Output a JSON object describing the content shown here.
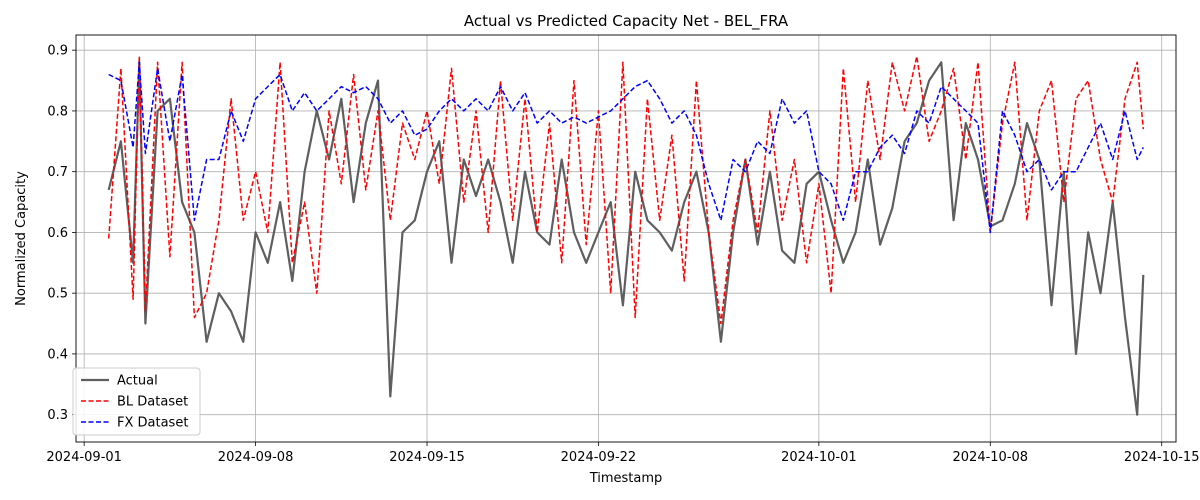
{
  "chart_data": {
    "type": "line",
    "title": "Actual vs Predicted Capacity Net - BEL_FRA",
    "xlabel": "Timestamp",
    "ylabel": "Normalized Capacity",
    "x_range": [
      "2024-08-31T16:00",
      "2024-10-15T14:00"
    ],
    "ylim": [
      0.255,
      0.925
    ],
    "x_ticks": [
      "2024-09-01",
      "2024-09-08",
      "2024-09-15",
      "2024-09-22",
      "2024-10-01",
      "2024-10-08",
      "2024-10-15"
    ],
    "y_ticks": [
      0.3,
      0.4,
      0.5,
      0.6,
      0.7,
      0.8,
      0.9
    ],
    "grid": true,
    "legend_position": "lower-left",
    "series": [
      {
        "name": "Actual",
        "color": "#5f5f5f",
        "style": "solid",
        "x": [
          "2024-09-02T00:00",
          "2024-09-02T12:00",
          "2024-09-03T00:00",
          "2024-09-03T06:00",
          "2024-09-03T12:00",
          "2024-09-04T00:00",
          "2024-09-04T12:00",
          "2024-09-05T00:00",
          "2024-09-05T12:00",
          "2024-09-06T00:00",
          "2024-09-06T12:00",
          "2024-09-07T00:00",
          "2024-09-07T12:00",
          "2024-09-08T00:00",
          "2024-09-08T12:00",
          "2024-09-09T00:00",
          "2024-09-09T12:00",
          "2024-09-10T00:00",
          "2024-09-10T12:00",
          "2024-09-11T00:00",
          "2024-09-11T12:00",
          "2024-09-12T00:00",
          "2024-09-12T12:00",
          "2024-09-13T00:00",
          "2024-09-13T12:00",
          "2024-09-14T00:00",
          "2024-09-14T12:00",
          "2024-09-15T00:00",
          "2024-09-15T12:00",
          "2024-09-16T00:00",
          "2024-09-16T12:00",
          "2024-09-17T00:00",
          "2024-09-17T12:00",
          "2024-09-18T00:00",
          "2024-09-18T12:00",
          "2024-09-19T00:00",
          "2024-09-19T12:00",
          "2024-09-20T00:00",
          "2024-09-20T12:00",
          "2024-09-21T00:00",
          "2024-09-21T12:00",
          "2024-09-22T00:00",
          "2024-09-22T12:00",
          "2024-09-23T00:00",
          "2024-09-23T12:00",
          "2024-09-24T00:00",
          "2024-09-24T12:00",
          "2024-09-25T00:00",
          "2024-09-25T12:00",
          "2024-09-26T00:00",
          "2024-09-26T12:00",
          "2024-09-27T00:00",
          "2024-09-27T12:00",
          "2024-09-28T00:00",
          "2024-09-28T12:00",
          "2024-09-29T00:00",
          "2024-09-29T12:00",
          "2024-09-30T00:00",
          "2024-09-30T12:00",
          "2024-10-01T00:00",
          "2024-10-01T12:00",
          "2024-10-02T00:00",
          "2024-10-02T12:00",
          "2024-10-03T00:00",
          "2024-10-03T12:00",
          "2024-10-04T00:00",
          "2024-10-04T12:00",
          "2024-10-05T00:00",
          "2024-10-05T12:00",
          "2024-10-06T00:00",
          "2024-10-06T12:00",
          "2024-10-07T00:00",
          "2024-10-07T12:00",
          "2024-10-08T00:00",
          "2024-10-08T12:00",
          "2024-10-09T00:00",
          "2024-10-09T12:00",
          "2024-10-10T00:00",
          "2024-10-10T12:00",
          "2024-10-11T00:00",
          "2024-10-11T12:00",
          "2024-10-12T00:00",
          "2024-10-12T12:00",
          "2024-10-13T00:00",
          "2024-10-13T12:00",
          "2024-10-14T00:00",
          "2024-10-14T06:00"
        ],
        "y": [
          0.67,
          0.75,
          0.55,
          0.88,
          0.45,
          0.8,
          0.82,
          0.65,
          0.6,
          0.42,
          0.5,
          0.47,
          0.42,
          0.6,
          0.55,
          0.65,
          0.52,
          0.7,
          0.8,
          0.72,
          0.82,
          0.65,
          0.78,
          0.85,
          0.33,
          0.6,
          0.62,
          0.7,
          0.75,
          0.55,
          0.72,
          0.66,
          0.72,
          0.65,
          0.55,
          0.7,
          0.6,
          0.58,
          0.72,
          0.6,
          0.55,
          0.6,
          0.65,
          0.48,
          0.7,
          0.62,
          0.6,
          0.57,
          0.65,
          0.7,
          0.6,
          0.42,
          0.6,
          0.72,
          0.58,
          0.7,
          0.57,
          0.55,
          0.68,
          0.7,
          0.62,
          0.55,
          0.6,
          0.72,
          0.58,
          0.64,
          0.75,
          0.78,
          0.85,
          0.88,
          0.62,
          0.78,
          0.72,
          0.61,
          0.62,
          0.68,
          0.78,
          0.72,
          0.48,
          0.7,
          0.4,
          0.6,
          0.5,
          0.65,
          0.46,
          0.3,
          0.53
        ]
      },
      {
        "name": "BL Dataset",
        "color": "#ff0000",
        "style": "dashed",
        "x": [
          "2024-09-02T00:00",
          "2024-09-02T12:00",
          "2024-09-03T00:00",
          "2024-09-03T06:00",
          "2024-09-03T12:00",
          "2024-09-04T00:00",
          "2024-09-04T12:00",
          "2024-09-05T00:00",
          "2024-09-05T12:00",
          "2024-09-06T00:00",
          "2024-09-06T12:00",
          "2024-09-07T00:00",
          "2024-09-07T12:00",
          "2024-09-08T00:00",
          "2024-09-08T12:00",
          "2024-09-09T00:00",
          "2024-09-09T12:00",
          "2024-09-10T00:00",
          "2024-09-10T12:00",
          "2024-09-11T00:00",
          "2024-09-11T12:00",
          "2024-09-12T00:00",
          "2024-09-12T12:00",
          "2024-09-13T00:00",
          "2024-09-13T12:00",
          "2024-09-14T00:00",
          "2024-09-14T12:00",
          "2024-09-15T00:00",
          "2024-09-15T12:00",
          "2024-09-16T00:00",
          "2024-09-16T12:00",
          "2024-09-17T00:00",
          "2024-09-17T12:00",
          "2024-09-18T00:00",
          "2024-09-18T12:00",
          "2024-09-19T00:00",
          "2024-09-19T12:00",
          "2024-09-20T00:00",
          "2024-09-20T12:00",
          "2024-09-21T00:00",
          "2024-09-21T12:00",
          "2024-09-22T00:00",
          "2024-09-22T12:00",
          "2024-09-23T00:00",
          "2024-09-23T12:00",
          "2024-09-24T00:00",
          "2024-09-24T12:00",
          "2024-09-25T00:00",
          "2024-09-25T12:00",
          "2024-09-26T00:00",
          "2024-09-26T12:00",
          "2024-09-27T00:00",
          "2024-09-27T12:00",
          "2024-09-28T00:00",
          "2024-09-28T12:00",
          "2024-09-29T00:00",
          "2024-09-29T12:00",
          "2024-09-30T00:00",
          "2024-09-30T12:00",
          "2024-10-01T00:00",
          "2024-10-01T12:00",
          "2024-10-02T00:00",
          "2024-10-02T12:00",
          "2024-10-03T00:00",
          "2024-10-03T12:00",
          "2024-10-04T00:00",
          "2024-10-04T12:00",
          "2024-10-05T00:00",
          "2024-10-05T12:00",
          "2024-10-06T00:00",
          "2024-10-06T12:00",
          "2024-10-07T00:00",
          "2024-10-07T12:00",
          "2024-10-08T00:00",
          "2024-10-08T12:00",
          "2024-10-09T00:00",
          "2024-10-09T12:00",
          "2024-10-10T00:00",
          "2024-10-10T12:00",
          "2024-10-11T00:00",
          "2024-10-11T12:00",
          "2024-10-12T00:00",
          "2024-10-12T12:00",
          "2024-10-13T00:00",
          "2024-10-13T12:00",
          "2024-10-14T00:00",
          "2024-10-14T06:00"
        ],
        "y": [
          0.59,
          0.87,
          0.49,
          0.89,
          0.47,
          0.88,
          0.56,
          0.88,
          0.46,
          0.5,
          0.62,
          0.82,
          0.62,
          0.7,
          0.6,
          0.88,
          0.55,
          0.65,
          0.5,
          0.8,
          0.68,
          0.86,
          0.67,
          0.8,
          0.62,
          0.78,
          0.72,
          0.8,
          0.68,
          0.87,
          0.65,
          0.8,
          0.6,
          0.85,
          0.62,
          0.82,
          0.6,
          0.78,
          0.55,
          0.85,
          0.58,
          0.8,
          0.5,
          0.88,
          0.46,
          0.82,
          0.62,
          0.76,
          0.52,
          0.85,
          0.6,
          0.45,
          0.62,
          0.72,
          0.6,
          0.8,
          0.62,
          0.72,
          0.55,
          0.68,
          0.5,
          0.87,
          0.65,
          0.85,
          0.72,
          0.88,
          0.8,
          0.89,
          0.75,
          0.8,
          0.87,
          0.72,
          0.88,
          0.6,
          0.78,
          0.88,
          0.62,
          0.8,
          0.85,
          0.65,
          0.82,
          0.85,
          0.72,
          0.65,
          0.82,
          0.88,
          0.77
        ]
      },
      {
        "name": "FX Dataset",
        "color": "#0000ff",
        "style": "dashed",
        "x": [
          "2024-09-02T00:00",
          "2024-09-02T12:00",
          "2024-09-03T00:00",
          "2024-09-03T06:00",
          "2024-09-03T12:00",
          "2024-09-04T00:00",
          "2024-09-04T12:00",
          "2024-09-05T00:00",
          "2024-09-05T12:00",
          "2024-09-06T00:00",
          "2024-09-06T12:00",
          "2024-09-07T00:00",
          "2024-09-07T12:00",
          "2024-09-08T00:00",
          "2024-09-08T12:00",
          "2024-09-09T00:00",
          "2024-09-09T12:00",
          "2024-09-10T00:00",
          "2024-09-10T12:00",
          "2024-09-11T00:00",
          "2024-09-11T12:00",
          "2024-09-12T00:00",
          "2024-09-12T12:00",
          "2024-09-13T00:00",
          "2024-09-13T12:00",
          "2024-09-14T00:00",
          "2024-09-14T12:00",
          "2024-09-15T00:00",
          "2024-09-15T12:00",
          "2024-09-16T00:00",
          "2024-09-16T12:00",
          "2024-09-17T00:00",
          "2024-09-17T12:00",
          "2024-09-18T00:00",
          "2024-09-18T12:00",
          "2024-09-19T00:00",
          "2024-09-19T12:00",
          "2024-09-20T00:00",
          "2024-09-20T12:00",
          "2024-09-21T00:00",
          "2024-09-21T12:00",
          "2024-09-22T00:00",
          "2024-09-22T12:00",
          "2024-09-23T00:00",
          "2024-09-23T12:00",
          "2024-09-24T00:00",
          "2024-09-24T12:00",
          "2024-09-25T00:00",
          "2024-09-25T12:00",
          "2024-09-26T00:00",
          "2024-09-26T12:00",
          "2024-09-27T00:00",
          "2024-09-27T12:00",
          "2024-09-28T00:00",
          "2024-09-28T12:00",
          "2024-09-29T00:00",
          "2024-09-29T12:00",
          "2024-09-30T00:00",
          "2024-09-30T12:00",
          "2024-10-01T00:00",
          "2024-10-01T12:00",
          "2024-10-02T00:00",
          "2024-10-02T12:00",
          "2024-10-03T00:00",
          "2024-10-03T12:00",
          "2024-10-04T00:00",
          "2024-10-04T12:00",
          "2024-10-05T00:00",
          "2024-10-05T12:00",
          "2024-10-06T00:00",
          "2024-10-06T12:00",
          "2024-10-07T00:00",
          "2024-10-07T12:00",
          "2024-10-08T00:00",
          "2024-10-08T12:00",
          "2024-10-09T00:00",
          "2024-10-09T12:00",
          "2024-10-10T00:00",
          "2024-10-10T12:00",
          "2024-10-11T00:00",
          "2024-10-11T12:00",
          "2024-10-12T00:00",
          "2024-10-12T12:00",
          "2024-10-13T00:00",
          "2024-10-13T12:00",
          "2024-10-14T00:00",
          "2024-10-14T06:00"
        ],
        "y": [
          0.86,
          0.85,
          0.74,
          0.88,
          0.73,
          0.87,
          0.75,
          0.86,
          0.62,
          0.72,
          0.72,
          0.8,
          0.75,
          0.82,
          0.84,
          0.86,
          0.8,
          0.83,
          0.8,
          0.82,
          0.84,
          0.83,
          0.84,
          0.82,
          0.78,
          0.8,
          0.76,
          0.77,
          0.8,
          0.82,
          0.8,
          0.82,
          0.8,
          0.84,
          0.8,
          0.83,
          0.78,
          0.8,
          0.78,
          0.79,
          0.78,
          0.79,
          0.8,
          0.82,
          0.84,
          0.85,
          0.82,
          0.78,
          0.8,
          0.76,
          0.68,
          0.62,
          0.72,
          0.7,
          0.75,
          0.73,
          0.82,
          0.78,
          0.8,
          0.7,
          0.68,
          0.62,
          0.7,
          0.7,
          0.74,
          0.76,
          0.73,
          0.8,
          0.78,
          0.84,
          0.82,
          0.8,
          0.78,
          0.6,
          0.8,
          0.76,
          0.7,
          0.72,
          0.67,
          0.7,
          0.7,
          0.74,
          0.78,
          0.72,
          0.8,
          0.72,
          0.74
        ]
      }
    ]
  }
}
